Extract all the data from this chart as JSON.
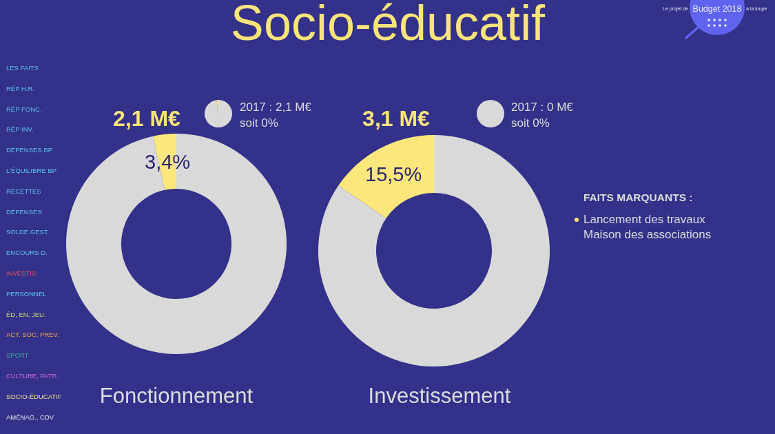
{
  "chart_data": [
    {
      "type": "other",
      "title": "Socio-éducatif",
      "annotations": [
        "Le projet de",
        "Budget 2018",
        "à la loupe"
      ]
    },
    {
      "type": "other",
      "categories": [
        "LES FAITS",
        "RÉP H.R.",
        "RÉP FONC.",
        "RÉP INV.",
        "DÉPENSES BP",
        "L'ÉQUILIBRE BP",
        "RECETTES",
        "DÉPENSES",
        "SOLDE GEST.",
        "ENCOURS D.",
        "INVESTIS.",
        "PERSONNEL",
        "ÉD, EN, JEU.",
        "ACT. SOC. PREV.",
        "SPORT",
        "CULTURE, PATR.",
        "SOCIO-ÉDUCATIF",
        "AMÉNAG., CDV"
      ],
      "colors": [
        "#5ec4f2",
        "#5ec4f2",
        "#5ec4f2",
        "#5ec4f2",
        "#5ec4f2",
        "#5ec4f2",
        "#5ec4f2",
        "#5ec4f2",
        "#5ec4f2",
        "#5ec4f2",
        "#e8545a",
        "#5ec4f2",
        "#c5d879",
        "#f2a54a",
        "#3fb3a0",
        "#d16ad6",
        "#f1e592",
        "#e6e6e6"
      ]
    },
    {
      "type": "donut",
      "title": "Fonctionnement",
      "categories": [
        null,
        null
      ],
      "values": [
        3.4,
        96.6
      ],
      "colors": [
        "#fce77c",
        "#d9d9d9"
      ],
      "value_labels": [
        "3,4%",
        null
      ],
      "annotations": [
        "2,1 M€"
      ]
    },
    {
      "type": "pie",
      "categories": [
        null,
        null
      ],
      "values": [
        2,
        98
      ],
      "colors": [
        "#fce77c",
        "#d9d9d9"
      ],
      "annotations": [
        "2017 : 2,1 M€",
        "soit 0%"
      ]
    },
    {
      "type": "donut",
      "title": "Investissement",
      "categories": [
        null,
        null
      ],
      "values": [
        15.5,
        84.5
      ],
      "colors": [
        "#fce77c",
        "#d9d9d9"
      ],
      "value_labels": [
        "15,5%",
        null
      ],
      "annotations": [
        "3,1 M€"
      ]
    },
    {
      "type": "pie",
      "categories": [
        null,
        null
      ],
      "values": [
        0,
        100
      ],
      "colors": [
        "#fce77c",
        "#d9d9d9"
      ],
      "annotations": [
        "2017 : 0 M€",
        "soit 0%"
      ]
    },
    {
      "type": "other",
      "title": "FAITS MARQUANTS :",
      "annotations": [
        "Lancement des travaux Maison des associations"
      ]
    }
  ]
}
